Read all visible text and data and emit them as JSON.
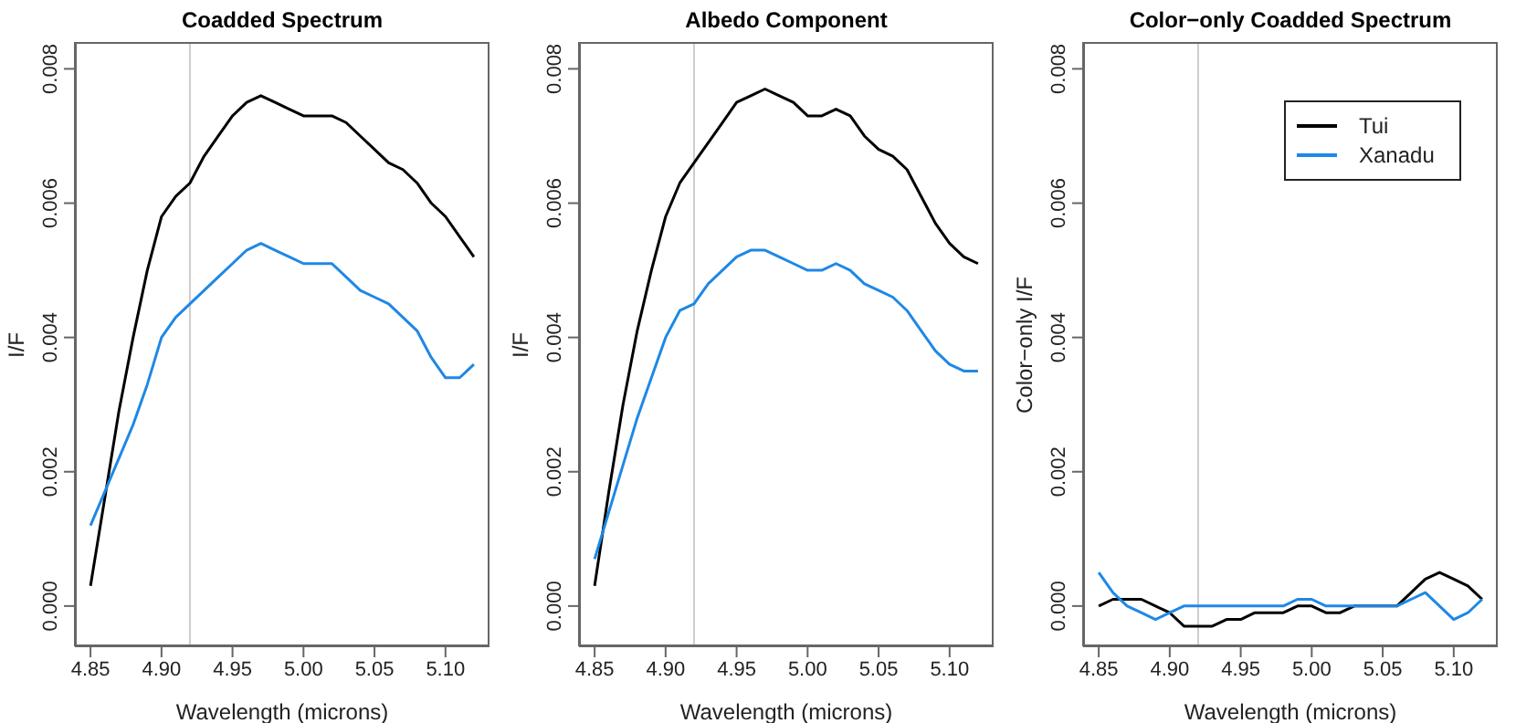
{
  "chart_data": [
    {
      "type": "line",
      "title": "Coadded Spectrum",
      "xlabel": "Wavelength (microns)",
      "ylabel": "I/F",
      "x": [
        4.85,
        4.86,
        4.87,
        4.88,
        4.89,
        4.9,
        4.91,
        4.92,
        4.93,
        4.94,
        4.95,
        4.96,
        4.97,
        4.98,
        4.99,
        5.0,
        5.01,
        5.02,
        5.03,
        5.04,
        5.05,
        5.06,
        5.07,
        5.08,
        5.09,
        5.1,
        5.11,
        5.12
      ],
      "xlim": [
        4.839,
        5.131
      ],
      "xticks": [
        {
          "value": 4.85,
          "label": "4.85"
        },
        {
          "value": 4.9,
          "label": "4.90"
        },
        {
          "value": 4.95,
          "label": "4.95"
        },
        {
          "value": 5.0,
          "label": "5.00"
        },
        {
          "value": 5.05,
          "label": "5.05"
        },
        {
          "value": 5.1,
          "label": "5.10"
        }
      ],
      "ylim": [
        -0.0006,
        0.0084
      ],
      "yticks": [
        {
          "value": 0,
          "label": "0.000"
        },
        {
          "value": 0.002,
          "label": "0.002"
        },
        {
          "value": 0.004,
          "label": "0.004"
        },
        {
          "value": 0.006,
          "label": "0.006"
        },
        {
          "value": 0.008,
          "label": "0.008"
        }
      ],
      "ref_lines": [
        {
          "axis": "x",
          "value": 4.92,
          "color": "#cccccc"
        }
      ],
      "series": [
        {
          "color": "#000000",
          "values": [
            0.0003,
            0.0016,
            0.0029,
            0.004,
            0.005,
            0.0058,
            0.0061,
            0.0063,
            0.0067,
            0.007,
            0.0073,
            0.0075,
            0.0076,
            0.0075,
            0.0074,
            0.0073,
            0.0073,
            0.0073,
            0.0072,
            0.007,
            0.0068,
            0.0066,
            0.0065,
            0.0063,
            0.006,
            0.0058,
            0.0055,
            0.0052
          ]
        },
        {
          "color": "#1e88e5",
          "values": [
            0.0012,
            0.0017,
            0.0022,
            0.0027,
            0.0033,
            0.004,
            0.0043,
            0.0045,
            0.0047,
            0.0049,
            0.0051,
            0.0053,
            0.0054,
            0.0053,
            0.0052,
            0.0051,
            0.0051,
            0.0051,
            0.0049,
            0.0047,
            0.0046,
            0.0045,
            0.0043,
            0.0041,
            0.0037,
            0.0034,
            0.0034,
            0.0036
          ]
        }
      ]
    },
    {
      "type": "line",
      "title": "Albedo Component",
      "xlabel": "Wavelength (microns)",
      "ylabel": "I/F",
      "x": [
        4.85,
        4.86,
        4.87,
        4.88,
        4.89,
        4.9,
        4.91,
        4.92,
        4.93,
        4.94,
        4.95,
        4.96,
        4.97,
        4.98,
        4.99,
        5.0,
        5.01,
        5.02,
        5.03,
        5.04,
        5.05,
        5.06,
        5.07,
        5.08,
        5.09,
        5.1,
        5.11,
        5.12
      ],
      "xlim": [
        4.839,
        5.131
      ],
      "xticks": [
        {
          "value": 4.85,
          "label": "4.85"
        },
        {
          "value": 4.9,
          "label": "4.90"
        },
        {
          "value": 4.95,
          "label": "4.95"
        },
        {
          "value": 5.0,
          "label": "5.00"
        },
        {
          "value": 5.05,
          "label": "5.05"
        },
        {
          "value": 5.1,
          "label": "5.10"
        }
      ],
      "ylim": [
        -0.0006,
        0.0084
      ],
      "yticks": [
        {
          "value": 0,
          "label": "0.000"
        },
        {
          "value": 0.002,
          "label": "0.002"
        },
        {
          "value": 0.004,
          "label": "0.004"
        },
        {
          "value": 0.006,
          "label": "0.006"
        },
        {
          "value": 0.008,
          "label": "0.008"
        }
      ],
      "ref_lines": [
        {
          "axis": "x",
          "value": 4.92,
          "color": "#cccccc"
        }
      ],
      "series": [
        {
          "color": "#000000",
          "values": [
            0.0003,
            0.0017,
            0.003,
            0.0041,
            0.005,
            0.0058,
            0.0063,
            0.0066,
            0.0069,
            0.0072,
            0.0075,
            0.0076,
            0.0077,
            0.0076,
            0.0075,
            0.0073,
            0.0073,
            0.0074,
            0.0073,
            0.007,
            0.0068,
            0.0067,
            0.0065,
            0.0061,
            0.0057,
            0.0054,
            0.0052,
            0.0051
          ]
        },
        {
          "color": "#1e88e5",
          "values": [
            0.0007,
            0.0014,
            0.0021,
            0.0028,
            0.0034,
            0.004,
            0.0044,
            0.0045,
            0.0048,
            0.005,
            0.0052,
            0.0053,
            0.0053,
            0.0052,
            0.0051,
            0.005,
            0.005,
            0.0051,
            0.005,
            0.0048,
            0.0047,
            0.0046,
            0.0044,
            0.0041,
            0.0038,
            0.0036,
            0.0035,
            0.0035
          ]
        }
      ]
    },
    {
      "type": "line",
      "title": "Color−only Coadded Spectrum",
      "xlabel": "Wavelength (microns)",
      "ylabel": "Color−only I/F",
      "legend": "top right",
      "x": [
        4.85,
        4.86,
        4.87,
        4.88,
        4.89,
        4.9,
        4.91,
        4.92,
        4.93,
        4.94,
        4.95,
        4.96,
        4.97,
        4.98,
        4.99,
        5.0,
        5.01,
        5.02,
        5.03,
        5.04,
        5.05,
        5.06,
        5.07,
        5.08,
        5.09,
        5.1,
        5.11,
        5.12
      ],
      "xlim": [
        4.839,
        5.131
      ],
      "xticks": [
        {
          "value": 4.85,
          "label": "4.85"
        },
        {
          "value": 4.9,
          "label": "4.90"
        },
        {
          "value": 4.95,
          "label": "4.95"
        },
        {
          "value": 5.0,
          "label": "5.00"
        },
        {
          "value": 5.05,
          "label": "5.05"
        },
        {
          "value": 5.1,
          "label": "5.10"
        }
      ],
      "ylim": [
        -0.0006,
        0.0084
      ],
      "yticks": [
        {
          "value": 0,
          "label": "0.000"
        },
        {
          "value": 0.002,
          "label": "0.002"
        },
        {
          "value": 0.004,
          "label": "0.004"
        },
        {
          "value": 0.006,
          "label": "0.006"
        },
        {
          "value": 0.008,
          "label": "0.008"
        }
      ],
      "ref_lines": [
        {
          "axis": "x",
          "value": 4.92,
          "color": "#cccccc"
        }
      ],
      "series": [
        {
          "name": "Tui",
          "color": "#000000",
          "values": [
            0.0,
            0.0001,
            0.0001,
            0.0001,
            0.0,
            -0.0001,
            -0.0003,
            -0.0003,
            -0.0003,
            -0.0002,
            -0.0002,
            -0.0001,
            -0.0001,
            -0.0001,
            0.0,
            0.0,
            -0.0001,
            -0.0001,
            0.0,
            0.0,
            0.0,
            0.0,
            0.0002,
            0.0004,
            0.0005,
            0.0004,
            0.0003,
            0.0001
          ]
        },
        {
          "name": "Xanadu",
          "color": "#1e88e5",
          "values": [
            0.0005,
            0.0002,
            0.0,
            -0.0001,
            -0.0002,
            -0.0001,
            0.0,
            0.0,
            0.0,
            0.0,
            0.0,
            0.0,
            0.0,
            0.0,
            0.0001,
            0.0001,
            0.0,
            0.0,
            0.0,
            0.0,
            0.0,
            0.0,
            0.0001,
            0.0002,
            0.0,
            -0.0002,
            -0.0001,
            0.0001
          ]
        }
      ]
    }
  ]
}
